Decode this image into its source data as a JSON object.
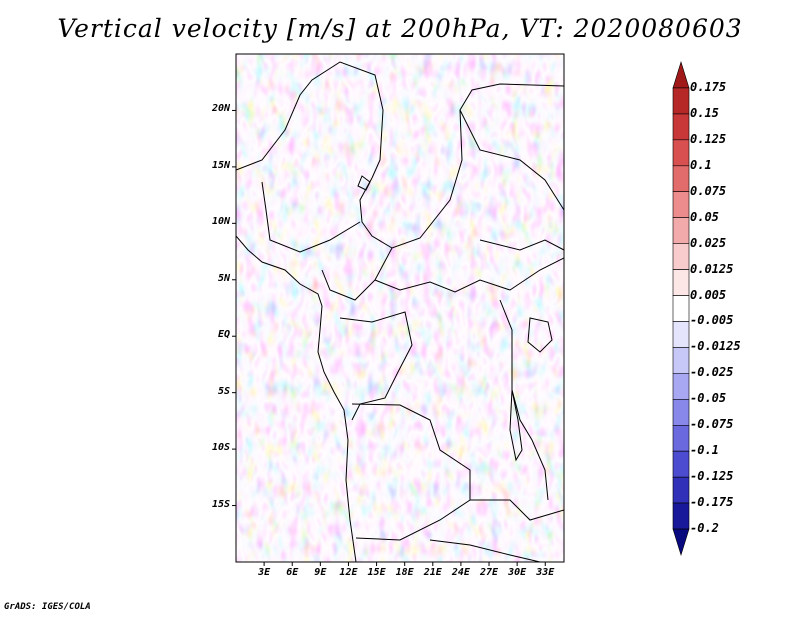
{
  "title": "Vertical velocity [m/s] at 200hPa, VT: 2020080603",
  "footer": "GrADS: IGES/COLA",
  "map": {
    "lon_range": [
      0,
      35
    ],
    "lat_range": [
      -20,
      25
    ],
    "lat_ticks": [
      {
        "value": 20,
        "label": "20N"
      },
      {
        "value": 15,
        "label": "15N"
      },
      {
        "value": 10,
        "label": "10N"
      },
      {
        "value": 5,
        "label": "5N"
      },
      {
        "value": 0,
        "label": "EQ"
      },
      {
        "value": -5,
        "label": "5S"
      },
      {
        "value": -10,
        "label": "10S"
      },
      {
        "value": -15,
        "label": "15S"
      }
    ],
    "lon_ticks": [
      {
        "value": 3,
        "label": "3E"
      },
      {
        "value": 6,
        "label": "6E"
      },
      {
        "value": 9,
        "label": "9E"
      },
      {
        "value": 12,
        "label": "12E"
      },
      {
        "value": 15,
        "label": "15E"
      },
      {
        "value": 18,
        "label": "18E"
      },
      {
        "value": 21,
        "label": "21E"
      },
      {
        "value": 24,
        "label": "24E"
      },
      {
        "value": 27,
        "label": "27E"
      },
      {
        "value": 30,
        "label": "30E"
      },
      {
        "value": 33,
        "label": "33E"
      }
    ]
  },
  "colorbar": {
    "labels": [
      "0.175",
      "0.15",
      "0.125",
      "0.1",
      "0.075",
      "0.05",
      "0.025",
      "0.0125",
      "0.005",
      "-0.005",
      "-0.0125",
      "-0.025",
      "-0.05",
      "-0.075",
      "-0.1",
      "-0.125",
      "-0.175",
      "-0.2"
    ],
    "colors": [
      "#a01818",
      "#b62828",
      "#c83838",
      "#d85050",
      "#e26c6c",
      "#ec8c8c",
      "#f2aaaa",
      "#f8cccc",
      "#fce6e6",
      "#ffffff",
      "#e4e4fc",
      "#c8c8f8",
      "#a8a8f2",
      "#8888ea",
      "#6a6ade",
      "#4c4cd0",
      "#3030b8",
      "#18189a",
      "#0a0a80"
    ]
  }
}
